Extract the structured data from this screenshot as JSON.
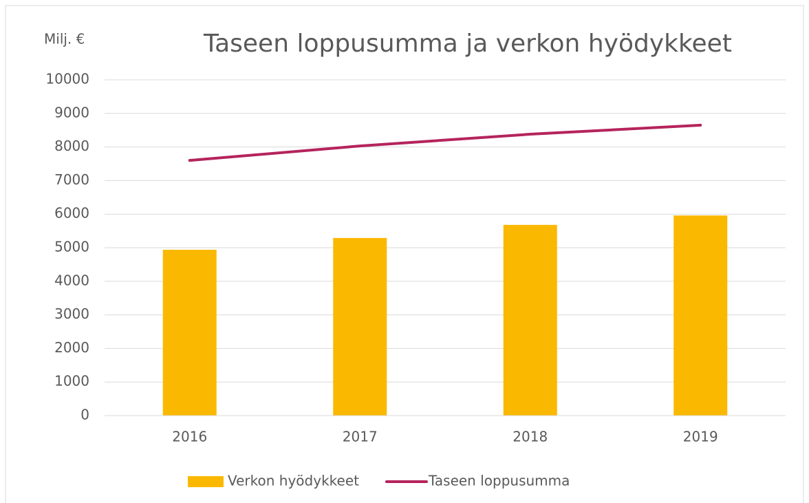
{
  "chart_data": {
    "type": "combo",
    "title": "Taseen loppusumma ja verkon hyödykkeet",
    "y_label": "Milj. €",
    "categories": [
      "2016",
      "2017",
      "2018",
      "2019"
    ],
    "series": [
      {
        "name": "Verkon hyödykkeet",
        "type": "bar",
        "color": "#fbb800",
        "values": [
          4940,
          5290,
          5680,
          5960
        ]
      },
      {
        "name": "Taseen loppusumma",
        "type": "line",
        "color": "#b5245c",
        "values": [
          7600,
          8030,
          8380,
          8650
        ]
      }
    ],
    "ylim": [
      0,
      10000
    ],
    "yticks": [
      0,
      1000,
      2000,
      3000,
      4000,
      5000,
      6000,
      7000,
      8000,
      9000,
      10000
    ],
    "grid": true,
    "legend": "bottom"
  }
}
